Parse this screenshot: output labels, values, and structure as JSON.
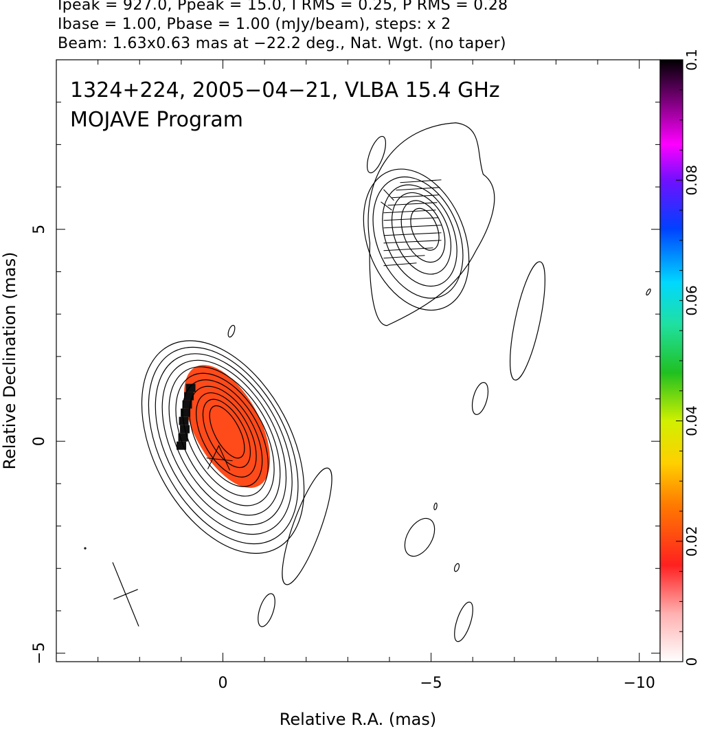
{
  "header": {
    "line1": "Ipeak = 927.0, Ppeak = 15.0, I RMS = 0.25, P RMS = 0.28",
    "line2": "Ibase = 1.00, Pbase = 1.00 (mJy/beam), steps: x 2",
    "line3": "Beam: 1.63x0.63 mas at −22.2 deg., Nat. Wgt. (no taper)"
  },
  "chart_data": {
    "type": "heatmap",
    "title": "1324+224, 2005−04−21, VLBA 15.4 GHz",
    "subtitle": "MOJAVE Program",
    "xlabel": "Relative R.A. (mas)",
    "ylabel": "Relative Declination (mas)",
    "xlim": [
      4,
      -10.5
    ],
    "ylim": [
      -5.2,
      9
    ],
    "xticks": [
      0,
      -5,
      -10
    ],
    "xtick_labels": [
      "0",
      "−5",
      "−10"
    ],
    "yticks": [
      -5,
      0,
      5
    ],
    "ytick_labels": [
      "−5",
      "0",
      "5"
    ],
    "colorbar": {
      "range": [
        0,
        0.1
      ],
      "ticks": [
        0,
        0.02,
        0.04,
        0.06,
        0.08,
        0.1
      ],
      "tick_labels": [
        "0",
        "0.02",
        "0.04",
        "0.06",
        "0.08",
        "0.1"
      ]
    },
    "core": {
      "ra": 0,
      "dec": 0,
      "ra_offset": -0.1,
      "dec_offset": 0.35,
      "levels": 11
    },
    "jet_component": {
      "ra": -4.85,
      "dec": 5.0,
      "levels": 6
    },
    "beam": {
      "major": 1.63,
      "minor": 0.63,
      "pa": -22.2
    },
    "colors": {
      "contour": "#000000",
      "pol_fill": "#ff4a1a",
      "pol_edge": "#101010"
    }
  }
}
